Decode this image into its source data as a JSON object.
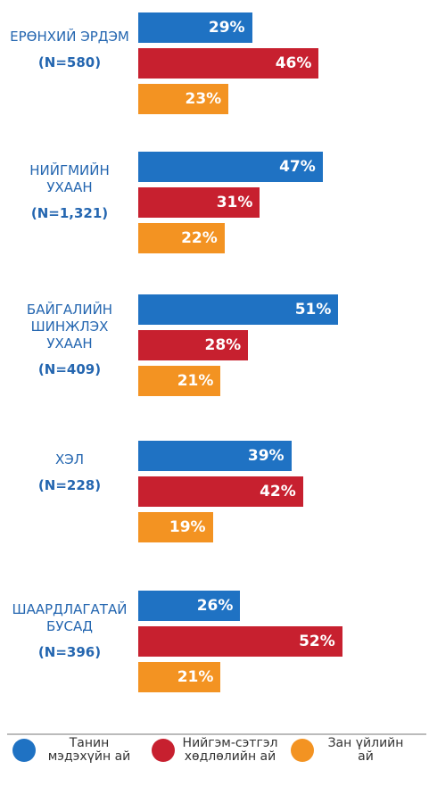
{
  "chart_data": {
    "type": "bar",
    "categories": [
      "ЕРӨНХИЙ ЭРДЭМ",
      "НИЙГМИЙН УХААН",
      "БАЙГАЛИЙН ШИНЖЛЭХ УХААН",
      "ХЭЛ",
      "ШААРДЛАГАТАЙ БУСАД"
    ],
    "category_counts": [
      "(N=580)",
      "(N=1,321)",
      "(N=409)",
      "(N=228)",
      "(N=396)"
    ],
    "series": [
      {
        "name": "Танин мэдэхүйн ай",
        "color": "#1f72c3",
        "values": [
          29,
          47,
          51,
          39,
          26
        ],
        "value_labels": [
          "29%",
          "47%",
          "51%",
          "39%",
          "26%"
        ]
      },
      {
        "name": "Нийгэм-сэтгэл хөдлөлийн ай",
        "color": "#c7202f",
        "values": [
          46,
          31,
          28,
          42,
          52
        ],
        "value_labels": [
          "46%",
          "31%",
          "28%",
          "42%",
          "52%"
        ]
      },
      {
        "name": "Зан үйлийн ай",
        "color": "#f39322",
        "values": [
          23,
          22,
          21,
          19,
          21
        ],
        "value_labels": [
          "23%",
          "22%",
          "21%",
          "19%",
          "21%"
        ]
      }
    ]
  }
}
